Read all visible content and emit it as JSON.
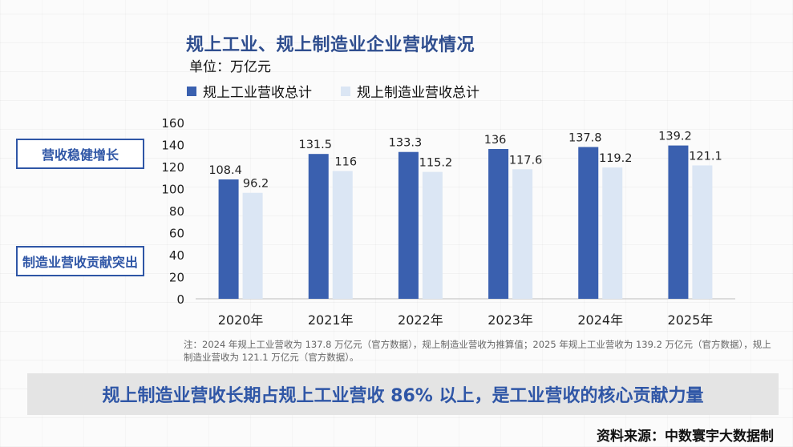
{
  "title": "规上工业、规上制造业企业营收情况",
  "unit": "单位：万亿元",
  "side_labels": [
    "营收稳健增长",
    "制造业营收贡献突出"
  ],
  "note": "注：2024 年规上工业营收为 137.8 万亿元（官方数据），规上制造业营收为推算值；2025 年规上工业营收为 139.2 万亿元（官方数据），规上制造业营收为 121.1 万亿元（官方数据）。",
  "banner": "规上制造业营收长期占规上工业营收 86% 以上，是工业营收的核心贡献力量",
  "source": "资料来源：中数寰宇大数据制",
  "colors": {
    "series1": "#3a60af",
    "series2": "#dbe6f4",
    "title": "#2f4e8f",
    "accent": "#2f56a6"
  },
  "chart_data": {
    "type": "bar",
    "categories": [
      "2020年",
      "2021年",
      "2022年",
      "2023年",
      "2024年",
      "2025年"
    ],
    "series": [
      {
        "name": "规上工业营收总计",
        "values": [
          108.4,
          131.5,
          133.3,
          136,
          137.8,
          139.2
        ]
      },
      {
        "name": "规上制造业营收总计",
        "values": [
          96.2,
          116,
          115.2,
          117.6,
          119.2,
          121.1
        ]
      }
    ],
    "ylim": [
      0,
      160
    ],
    "yticks": [
      0,
      20,
      40,
      60,
      80,
      100,
      120,
      140,
      160
    ],
    "grid": false,
    "legend": "top-left"
  }
}
